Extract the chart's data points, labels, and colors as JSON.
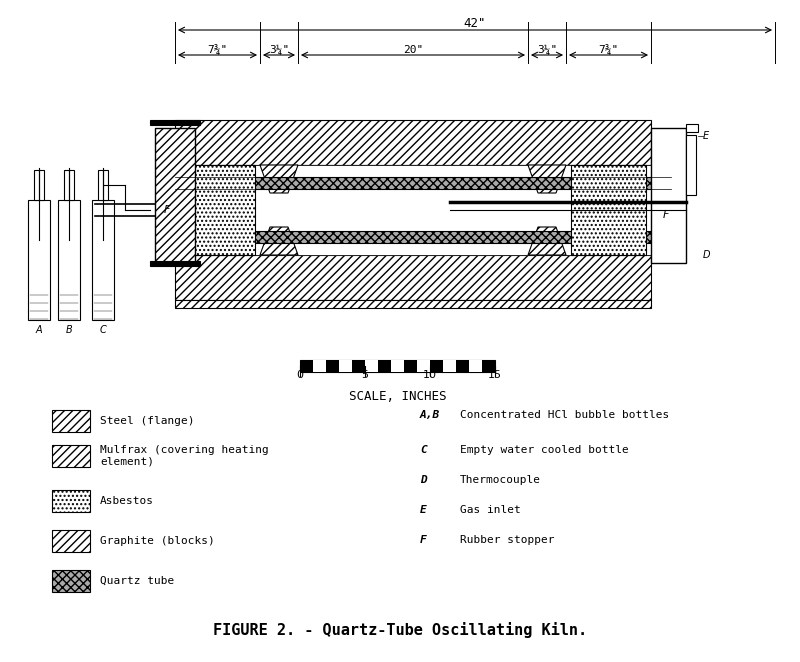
{
  "title": "FIGURE 2. - Quartz-Tube Oscillating Kiln.",
  "bg_color": "#ffffff",
  "line_color": "#000000",
  "hatch_steel": "////",
  "hatch_mulfrax": "////",
  "hatch_asbestos": "....",
  "hatch_graphite": "////",
  "hatch_quartz": "xxxx",
  "legend_items_left": [
    {
      "label": "Steel (flange)",
      "hatch": "////",
      "fc": "white",
      "ec": "black"
    },
    {
      "label": "Mulfrax (covering heating\nelement)",
      "hatch": "////",
      "fc": "white",
      "ec": "black"
    },
    {
      "label": "Asbestos",
      "hatch": "....",
      "fc": "white",
      "ec": "black"
    },
    {
      "label": "Graphite (blocks)",
      "hatch": "////",
      "fc": "white",
      "ec": "black"
    },
    {
      "label": "Quartz tube",
      "hatch": "xxxx",
      "fc": "gray",
      "ec": "black"
    }
  ],
  "legend_items_right": [
    {
      "label": "A,B  Concentrated HCl bubble bottles"
    },
    {
      "label": "C    Empty water cooled bottle"
    },
    {
      "label": "D    Thermocouple"
    },
    {
      "label": "E    Gas inlet"
    },
    {
      "label": "F    Rubber stopper"
    }
  ],
  "dim_total": "42\"",
  "dim_left": "7¾\"",
  "dim_left2": "3¼\"",
  "dim_center": "20\"",
  "dim_right2": "3¼\"",
  "dim_right": "7¾\"",
  "scale_label": "SCALE, INCHES",
  "scale_ticks": [
    0,
    5,
    10,
    15
  ]
}
